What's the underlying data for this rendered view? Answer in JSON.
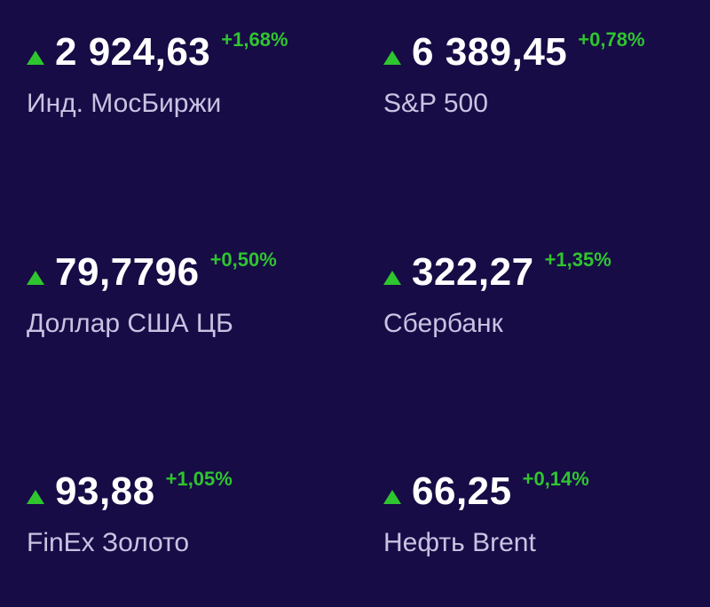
{
  "tickers": [
    {
      "value": "2 924,63",
      "change": "+1,68%",
      "name": "Инд. МосБиржи",
      "direction": "up-icon"
    },
    {
      "value": "6 389,45",
      "change": "+0,78%",
      "name": "S&P 500",
      "direction": "up-icon"
    },
    {
      "value": "79,7796",
      "change": "+0,50%",
      "name": "Доллар США ЦБ",
      "direction": "up-icon"
    },
    {
      "value": "322,27",
      "change": "+1,35%",
      "name": "Сбербанк",
      "direction": "up-icon"
    },
    {
      "value": "93,88",
      "change": "+1,05%",
      "name": "FinEx Золото",
      "direction": "up-icon"
    },
    {
      "value": "66,25",
      "change": "+0,14%",
      "name": "Нефть Brent",
      "direction": "up-icon"
    }
  ],
  "colors": {
    "background": "#170c46",
    "value": "#ffffff",
    "change_up": "#2fc52f",
    "name": "#c9c3e2"
  }
}
